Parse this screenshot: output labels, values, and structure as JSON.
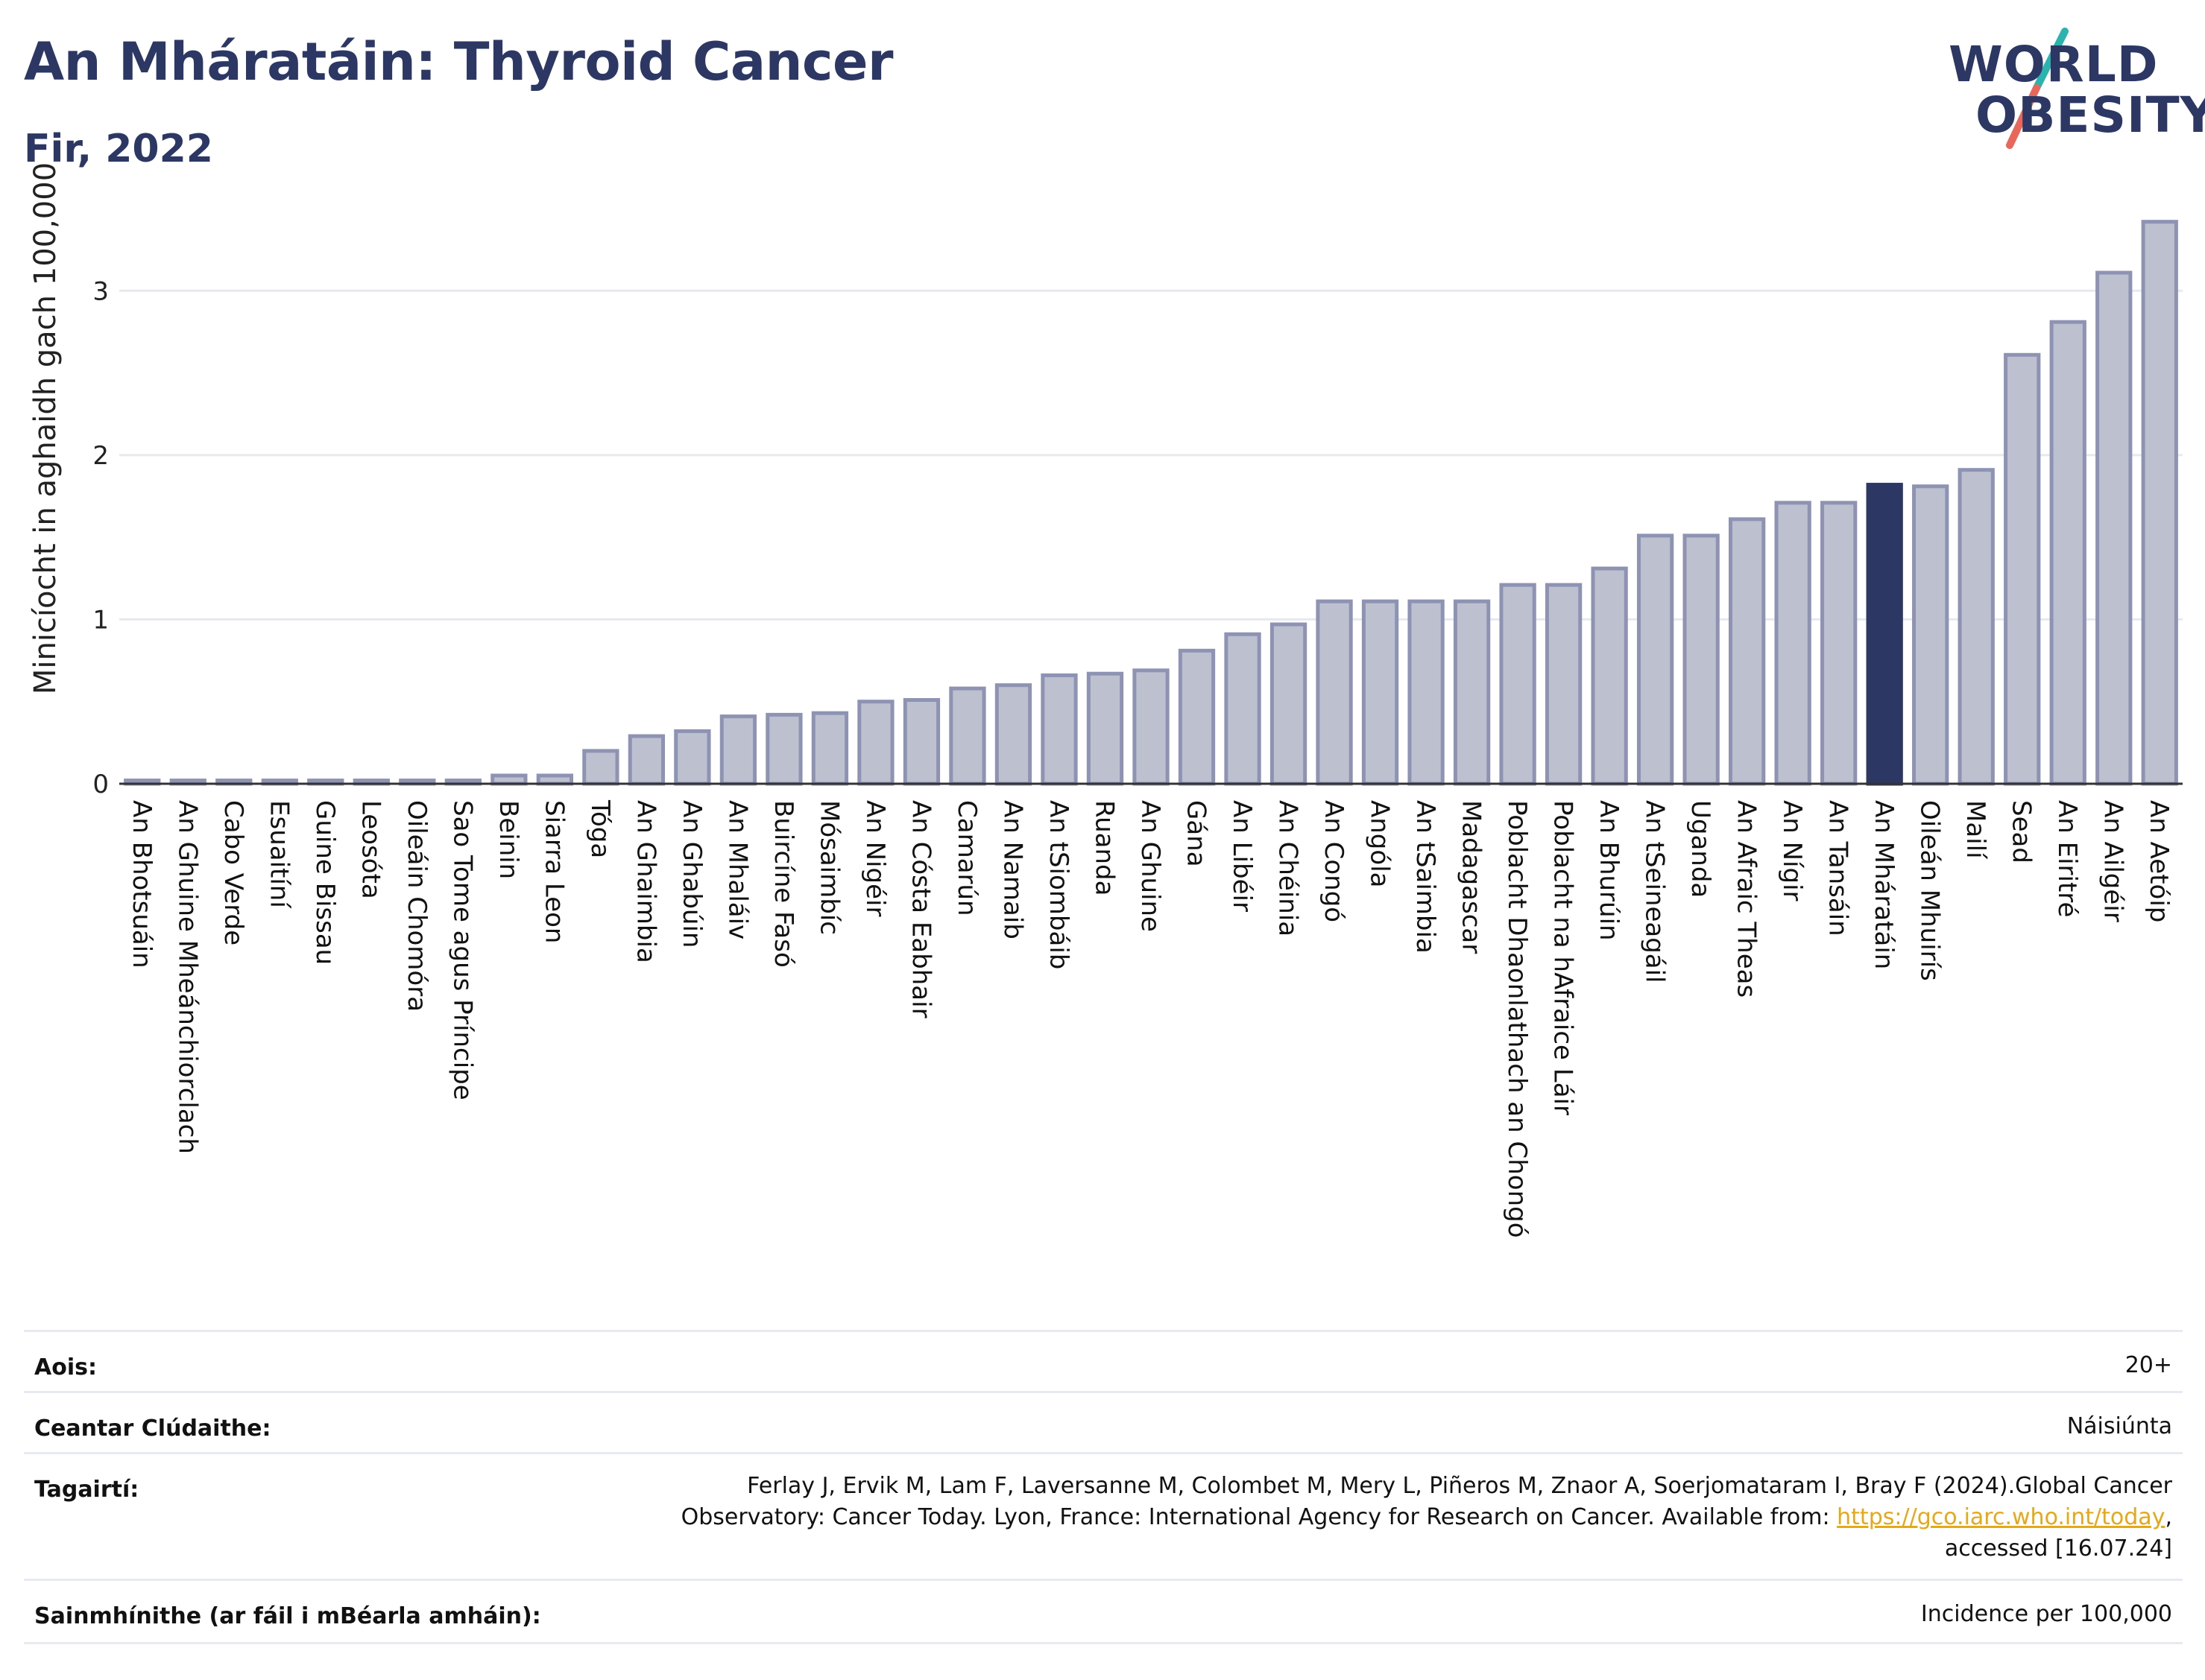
{
  "header": {
    "title": "An Mháratáin: Thyroid Cancer",
    "subtitle": "Fir, 2022"
  },
  "logo": {
    "line1": "WORLD",
    "line2": "OBESITY",
    "slash_color_top": "#2bb3ad",
    "slash_color_bottom": "#e8675a"
  },
  "chart_data": {
    "type": "bar",
    "ylabel": "Minicíocht in aghaidh gach 100,000",
    "xlabel": "",
    "ylim": [
      0,
      3.5
    ],
    "yticks": [
      0,
      1,
      2,
      3
    ],
    "grid": true,
    "highlight_category": "An Mháratáin",
    "colors": {
      "bar": "#bcc0cf",
      "bar_edge": "#8e93b3",
      "highlight": "#2c3863",
      "axis": "#333333",
      "grid": "#e6e9ee"
    },
    "categories": [
      "An Bhotsuáin",
      "An Ghuine Mheánchiorclach",
      "Cabo Verde",
      "Esuaitíní",
      "Guine Bissau",
      "Leosóta",
      "Oileáin Chomóra",
      "Sao Tome agus Príncipe",
      "Beinin",
      "Siarra Leon",
      "Tóga",
      "An Ghaimbia",
      "An Ghabúin",
      "An Mhaláiv",
      "Buircíne Fasó",
      "Mósaimbíc",
      "An Nigéir",
      "An Cósta Eabhair",
      "Camarún",
      "An Namaib",
      "An tSiombáib",
      "Ruanda",
      "An Ghuine",
      "Gána",
      "An Libéir",
      "An Chéinia",
      "An Congó",
      "Angóla",
      "An tSaimbia",
      "Madagascar",
      "Poblacht Dhaonlathach an Chongó",
      "Poblacht na hAfraice Láir",
      "An Bhurúin",
      "An tSeineagáil",
      "Uganda",
      "An Afraic Theas",
      "An Nígir",
      "An Tansáin",
      "An Mháratáin",
      "Oileán Mhuirís",
      "Mailí",
      "Sead",
      "An Eiritré",
      "An Ailgéir",
      "An Aetóip"
    ],
    "values": [
      0.02,
      0.02,
      0.02,
      0.02,
      0.02,
      0.02,
      0.02,
      0.02,
      0.05,
      0.05,
      0.2,
      0.29,
      0.32,
      0.41,
      0.42,
      0.43,
      0.5,
      0.51,
      0.58,
      0.6,
      0.66,
      0.67,
      0.69,
      0.81,
      0.91,
      0.97,
      1.11,
      1.11,
      1.11,
      1.11,
      1.21,
      1.21,
      1.31,
      1.51,
      1.51,
      1.61,
      1.71,
      1.71,
      1.82,
      1.81,
      1.91,
      2.61,
      2.81,
      3.11,
      3.42
    ]
  },
  "info": {
    "age_label": "Aois:",
    "age_value": "20+",
    "area_label": "Ceantar Clúdaithe:",
    "area_value": "Náisiúnta",
    "ref_label": "Tagairtí:",
    "ref_line1": "Ferlay J, Ervik M, Lam F, Laversanne M, Colombet M, Mery L, Piñeros M, Znaor A, Soerjomataram I, Bray F (2024).Global Cancer",
    "ref_line2_prefix": "Observatory: Cancer Today. Lyon, France: International Agency for Research on Cancer. Available from: ",
    "ref_link": "https://gco.iarc.who.int/today",
    "ref_line2_suffix": ",",
    "ref_line3": "accessed [16.07.24]",
    "def_label": "Sainmhínithe (ar fáil i mBéarla amháin):",
    "def_value": "Incidence per 100,000"
  }
}
